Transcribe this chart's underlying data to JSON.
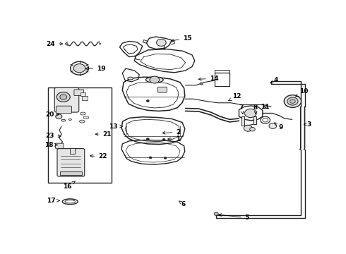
{
  "bg_color": "#ffffff",
  "line_color": "#222222",
  "figsize": [
    4.9,
    3.6
  ],
  "dpi": 100,
  "labels": {
    "1": {
      "pt": [
        0.455,
        0.555
      ],
      "txt": [
        0.495,
        0.555
      ],
      "ha": "left"
    },
    "2": {
      "pt": [
        0.435,
        0.525
      ],
      "txt": [
        0.495,
        0.52
      ],
      "ha": "left"
    },
    "3": {
      "pt": [
        0.97,
        0.48
      ],
      "txt": [
        0.982,
        0.48
      ],
      "ha": "left"
    },
    "4": {
      "pt": [
        0.845,
        0.27
      ],
      "txt": [
        0.86,
        0.255
      ],
      "ha": "left"
    },
    "5": {
      "pt": [
        0.645,
        0.94
      ],
      "txt": [
        0.76,
        0.958
      ],
      "ha": "center"
    },
    "6": {
      "pt": [
        0.505,
        0.87
      ],
      "txt": [
        0.515,
        0.89
      ],
      "ha": "left"
    },
    "7": {
      "pt": [
        0.745,
        0.43
      ],
      "txt": [
        0.738,
        0.395
      ],
      "ha": "center"
    },
    "8": {
      "pt": [
        0.792,
        0.43
      ],
      "txt": [
        0.792,
        0.395
      ],
      "ha": "center"
    },
    "9": {
      "pt": [
        0.86,
        0.47
      ],
      "txt": [
        0.878,
        0.495
      ],
      "ha": "left"
    },
    "10": {
      "pt": [
        0.94,
        0.34
      ],
      "txt": [
        0.954,
        0.31
      ],
      "ha": "left"
    },
    "11": {
      "pt": [
        0.828,
        0.4
      ],
      "txt": [
        0.828,
        0.39
      ],
      "ha": "center"
    },
    "12": {
      "pt": [
        0.69,
        0.36
      ],
      "txt": [
        0.705,
        0.335
      ],
      "ha": "left"
    },
    "13": {
      "pt": [
        0.305,
        0.49
      ],
      "txt": [
        0.278,
        0.49
      ],
      "ha": "right"
    },
    "14": {
      "pt": [
        0.57,
        0.25
      ],
      "txt": [
        0.62,
        0.245
      ],
      "ha": "left"
    },
    "15": {
      "pt": [
        0.468,
        0.055
      ],
      "txt": [
        0.52,
        0.04
      ],
      "ha": "left"
    },
    "16": {
      "pt": [
        0.12,
        0.77
      ],
      "txt": [
        0.09,
        0.8
      ],
      "ha": "center"
    },
    "17": {
      "pt": [
        0.07,
        0.87
      ],
      "txt": [
        0.045,
        0.87
      ],
      "ha": "right"
    },
    "18": {
      "pt": [
        0.062,
        0.585
      ],
      "txt": [
        0.038,
        0.585
      ],
      "ha": "right"
    },
    "19": {
      "pt": [
        0.148,
        0.195
      ],
      "txt": [
        0.2,
        0.195
      ],
      "ha": "left"
    },
    "20": {
      "pt": [
        0.068,
        0.43
      ],
      "txt": [
        0.04,
        0.43
      ],
      "ha": "right"
    },
    "21": {
      "pt": [
        0.185,
        0.53
      ],
      "txt": [
        0.22,
        0.53
      ],
      "ha": "left"
    },
    "22": {
      "pt": [
        0.165,
        0.64
      ],
      "txt": [
        0.205,
        0.645
      ],
      "ha": "left"
    },
    "23": {
      "pt": [
        0.075,
        0.54
      ],
      "txt": [
        0.04,
        0.54
      ],
      "ha": "right"
    },
    "24": {
      "pt": [
        0.082,
        0.068
      ],
      "txt": [
        0.045,
        0.068
      ],
      "ha": "right"
    }
  }
}
